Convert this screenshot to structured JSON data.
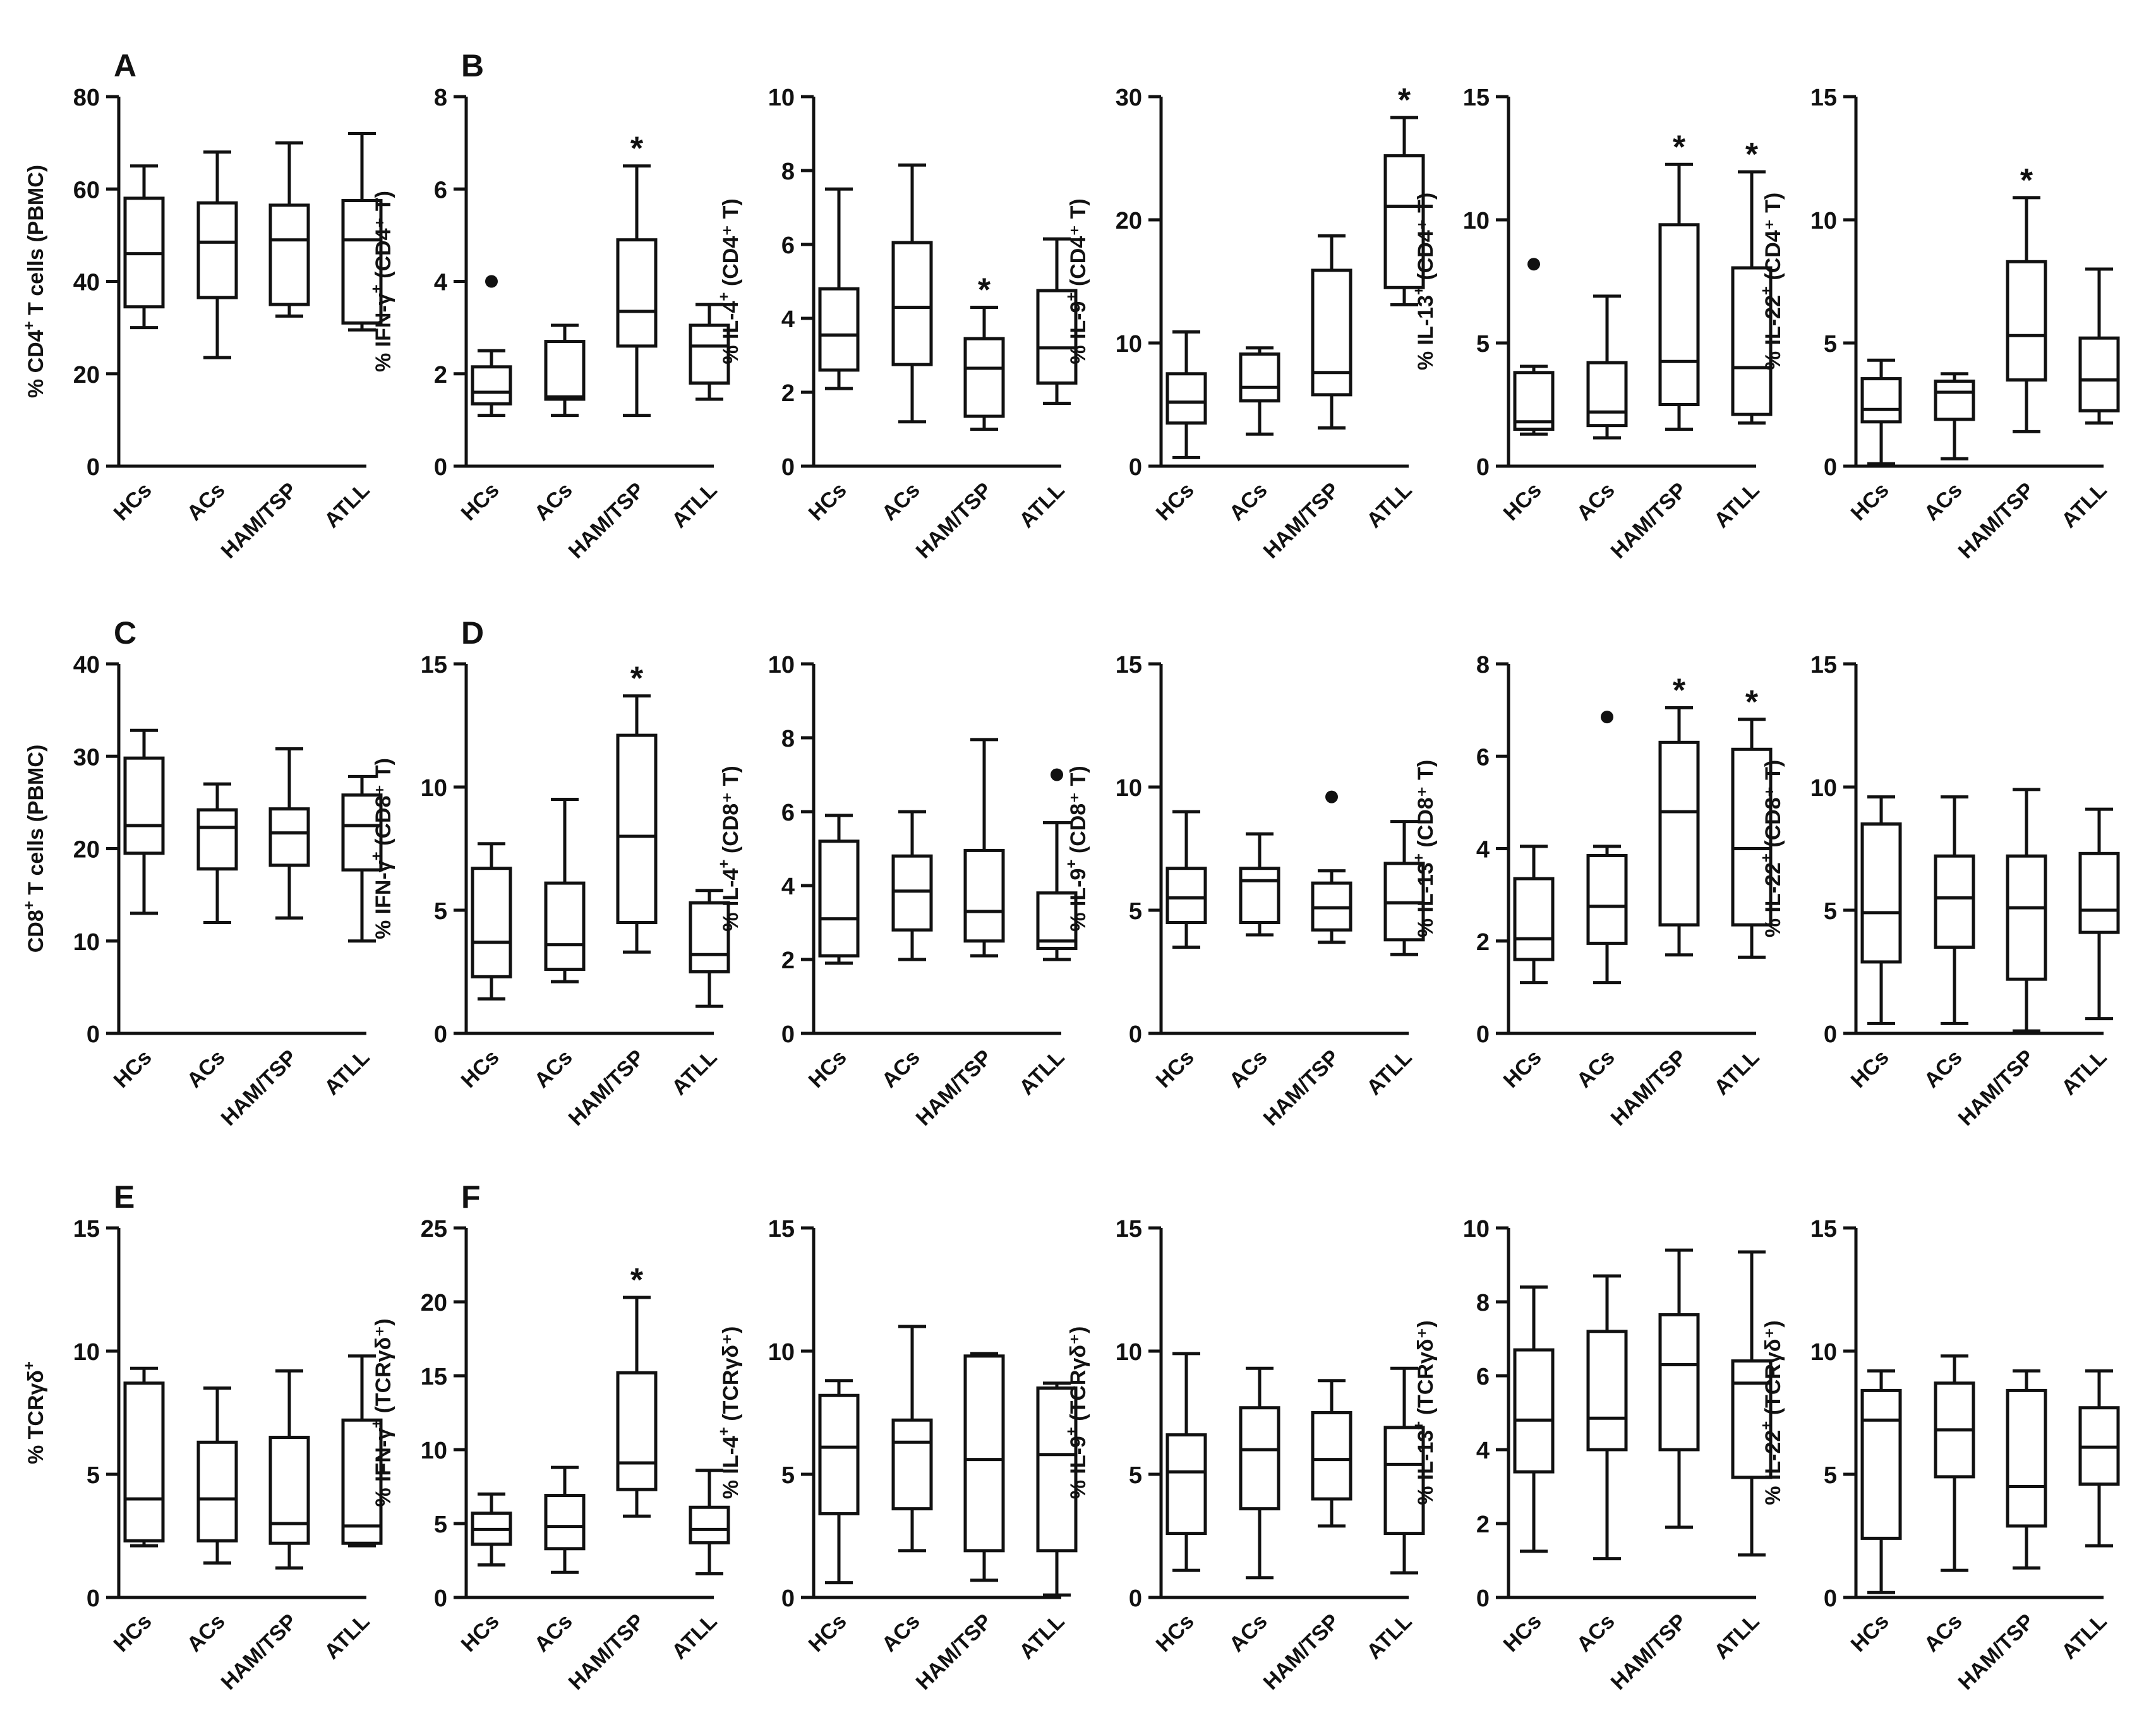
{
  "figure": {
    "categories": [
      "HCs",
      "ACs",
      "HAM/TSP",
      "ATLL"
    ],
    "colors": {
      "stroke": "#111111",
      "background": "#ffffff"
    }
  },
  "chart_data": [
    {
      "panel": "A",
      "type": "box",
      "ylabel": "% CD4",
      "ylabel_sup": "+",
      "ylabel_rest": " T cells (PBMC)",
      "ylim": [
        0,
        80
      ],
      "yticks": [
        0,
        20,
        40,
        60,
        80
      ],
      "categories": [
        "HCs",
        "ACs",
        "HAM/TSP",
        "ATLL"
      ],
      "boxes": [
        [
          30,
          34.5,
          46,
          58,
          65
        ],
        [
          23.5,
          36.5,
          48.5,
          57,
          68
        ],
        [
          32.5,
          35,
          49,
          56.5,
          70
        ],
        [
          29.5,
          31,
          49,
          57.5,
          72
        ]
      ],
      "outliers": [
        [],
        [],
        [],
        []
      ],
      "stars": [
        false,
        false,
        false,
        false
      ]
    },
    {
      "panel": "B",
      "type": "box",
      "ylabel": "% IFN-γ",
      "ylabel_sup": "+",
      "ylabel_rest": " (CD4⁺ T)",
      "ylim": [
        0,
        8
      ],
      "yticks": [
        0,
        2,
        4,
        6,
        8
      ],
      "categories": [
        "HCs",
        "ACs",
        "HAM/TSP",
        "ATLL"
      ],
      "boxes": [
        [
          1.1,
          1.35,
          1.6,
          2.15,
          2.5
        ],
        [
          1.1,
          1.45,
          1.5,
          2.7,
          3.05
        ],
        [
          1.1,
          2.6,
          3.35,
          4.9,
          6.5
        ],
        [
          1.45,
          1.8,
          2.6,
          3.05,
          3.5
        ]
      ],
      "outliers": [
        [
          4.0
        ],
        [],
        [],
        []
      ],
      "stars": [
        false,
        false,
        true,
        false
      ]
    },
    {
      "panel": "",
      "type": "box",
      "ylabel": "% IL-4",
      "ylabel_sup": "+",
      "ylabel_rest": " (CD4⁺ T)",
      "ylim": [
        0,
        10
      ],
      "yticks": [
        0,
        2,
        4,
        6,
        8,
        10
      ],
      "categories": [
        "HCs",
        "ACs",
        "HAM/TSP",
        "ATLL"
      ],
      "boxes": [
        [
          2.1,
          2.6,
          3.55,
          4.8,
          7.5
        ],
        [
          1.2,
          2.75,
          4.3,
          6.05,
          8.15
        ],
        [
          1.0,
          1.35,
          2.65,
          3.45,
          4.3
        ],
        [
          1.7,
          2.25,
          3.2,
          4.75,
          6.15
        ]
      ],
      "outliers": [
        [],
        [],
        [],
        []
      ],
      "stars": [
        false,
        false,
        true,
        false
      ]
    },
    {
      "panel": "",
      "type": "box",
      "ylabel": "% IL-9",
      "ylabel_sup": "+",
      "ylabel_rest": " (CD4⁺ T)",
      "ylim": [
        0,
        30
      ],
      "yticks": [
        0,
        10,
        20,
        30
      ],
      "categories": [
        "HCs",
        "ACs",
        "HAM/TSP",
        "ATLL"
      ],
      "boxes": [
        [
          0.7,
          3.5,
          5.2,
          7.5,
          10.9
        ],
        [
          2.6,
          5.3,
          6.4,
          9.1,
          9.6
        ],
        [
          3.1,
          5.8,
          7.6,
          15.9,
          18.7
        ],
        [
          13.1,
          14.5,
          21.1,
          25.2,
          28.3
        ]
      ],
      "outliers": [
        [],
        [],
        [],
        []
      ],
      "stars": [
        false,
        false,
        false,
        true
      ]
    },
    {
      "panel": "",
      "type": "box",
      "ylabel": "% IL-13",
      "ylabel_sup": "+",
      "ylabel_rest": " (CD4⁺ T)",
      "ylim": [
        0,
        15
      ],
      "yticks": [
        0,
        5,
        10,
        15
      ],
      "categories": [
        "HCs",
        "ACs",
        "HAM/TSP",
        "ATLL"
      ],
      "boxes": [
        [
          1.3,
          1.5,
          1.8,
          3.8,
          4.05
        ],
        [
          1.15,
          1.65,
          2.2,
          4.2,
          6.9
        ],
        [
          1.5,
          2.5,
          4.25,
          9.8,
          12.25
        ],
        [
          1.75,
          2.1,
          4.0,
          8.05,
          11.95
        ]
      ],
      "outliers": [
        [
          8.2
        ],
        [],
        [],
        []
      ],
      "stars": [
        false,
        false,
        true,
        true
      ]
    },
    {
      "panel": "",
      "type": "box",
      "ylabel": "% IL-22",
      "ylabel_sup": "+",
      "ylabel_rest": " (CD4⁺ T)",
      "ylim": [
        0,
        15
      ],
      "yticks": [
        0,
        5,
        10,
        15
      ],
      "categories": [
        "HCs",
        "ACs",
        "HAM/TSP",
        "ATLL"
      ],
      "boxes": [
        [
          0.1,
          1.8,
          2.3,
          3.55,
          4.3
        ],
        [
          0.3,
          1.9,
          3.0,
          3.45,
          3.75
        ],
        [
          1.4,
          3.5,
          5.3,
          8.3,
          10.9
        ],
        [
          1.75,
          2.25,
          3.5,
          5.2,
          8.0
        ]
      ],
      "outliers": [
        [],
        [],
        [],
        []
      ],
      "stars": [
        false,
        false,
        true,
        false
      ]
    },
    {
      "panel": "C",
      "type": "box",
      "ylabel": "CD8",
      "ylabel_sup": "+",
      "ylabel_rest": " T cells (PBMC)",
      "ylim": [
        0,
        40
      ],
      "yticks": [
        0,
        10,
        20,
        30,
        40
      ],
      "categories": [
        "HCs",
        "ACs",
        "HAM/TSP",
        "ATLL"
      ],
      "boxes": [
        [
          13,
          19.5,
          22.5,
          29.8,
          32.8
        ],
        [
          12,
          17.8,
          22.3,
          24.2,
          27
        ],
        [
          12.5,
          18.2,
          21.7,
          24.3,
          30.8
        ],
        [
          10,
          17.7,
          22.5,
          25.8,
          27.8
        ]
      ],
      "outliers": [
        [],
        [],
        [],
        []
      ],
      "stars": [
        false,
        false,
        false,
        false
      ]
    },
    {
      "panel": "D",
      "type": "box",
      "ylabel": "% IFN-γ",
      "ylabel_sup": "+",
      "ylabel_rest": " (CD8⁺ T)",
      "ylim": [
        0,
        15
      ],
      "yticks": [
        0,
        5,
        10,
        15
      ],
      "categories": [
        "HCs",
        "ACs",
        "HAM/TSP",
        "ATLL"
      ],
      "boxes": [
        [
          1.4,
          2.3,
          3.7,
          6.7,
          7.7
        ],
        [
          2.1,
          2.6,
          3.6,
          6.1,
          9.5
        ],
        [
          3.3,
          4.5,
          8.0,
          12.1,
          13.7
        ],
        [
          1.1,
          2.5,
          3.2,
          5.3,
          5.8
        ]
      ],
      "outliers": [
        [],
        [],
        [],
        []
      ],
      "stars": [
        false,
        false,
        true,
        false
      ]
    },
    {
      "panel": "",
      "type": "box",
      "ylabel": "% IL-4",
      "ylabel_sup": "+",
      "ylabel_rest": " (CD8⁺ T)",
      "ylim": [
        0,
        10
      ],
      "yticks": [
        0,
        2,
        4,
        6,
        8,
        10
      ],
      "categories": [
        "HCs",
        "ACs",
        "HAM/TSP",
        "ATLL"
      ],
      "boxes": [
        [
          1.9,
          2.1,
          3.1,
          5.2,
          5.9
        ],
        [
          2.0,
          2.8,
          3.85,
          4.8,
          6.0
        ],
        [
          2.1,
          2.5,
          3.3,
          4.95,
          7.95
        ],
        [
          2.0,
          2.3,
          2.5,
          3.8,
          5.7
        ]
      ],
      "outliers": [
        [],
        [],
        [],
        [
          7.0
        ]
      ],
      "stars": [
        false,
        false,
        false,
        false
      ]
    },
    {
      "panel": "",
      "type": "box",
      "ylabel": "% IL-9",
      "ylabel_sup": "+",
      "ylabel_rest": " (CD8⁺ T)",
      "ylim": [
        0,
        15
      ],
      "yticks": [
        0,
        5,
        10,
        15
      ],
      "categories": [
        "HCs",
        "ACs",
        "HAM/TSP",
        "ATLL"
      ],
      "boxes": [
        [
          3.5,
          4.5,
          5.5,
          6.7,
          9.0
        ],
        [
          4.0,
          4.5,
          6.2,
          6.7,
          8.1
        ],
        [
          3.7,
          4.2,
          5.1,
          6.1,
          6.6
        ],
        [
          3.2,
          3.8,
          5.3,
          6.9,
          8.6
        ]
      ],
      "outliers": [
        [],
        [],
        [
          9.6
        ],
        []
      ],
      "stars": [
        false,
        false,
        false,
        false
      ]
    },
    {
      "panel": "",
      "type": "box",
      "ylabel": "% IL-13",
      "ylabel_sup": "+",
      "ylabel_rest": " (CD8⁺ T)",
      "ylim": [
        0,
        8
      ],
      "yticks": [
        0,
        2,
        4,
        6,
        8
      ],
      "categories": [
        "HCs",
        "ACs",
        "HAM/TSP",
        "ATLL"
      ],
      "boxes": [
        [
          1.1,
          1.6,
          2.05,
          3.35,
          4.05
        ],
        [
          1.1,
          1.95,
          2.75,
          3.85,
          4.05
        ],
        [
          1.7,
          2.35,
          4.8,
          6.3,
          7.05
        ],
        [
          1.65,
          2.35,
          4.0,
          6.15,
          6.8
        ]
      ],
      "outliers": [
        [],
        [
          6.85
        ],
        [],
        []
      ],
      "stars": [
        false,
        false,
        true,
        true
      ]
    },
    {
      "panel": "",
      "type": "box",
      "ylabel": "% IL-22",
      "ylabel_sup": "+",
      "ylabel_rest": " (CD8⁺ T)",
      "ylim": [
        0,
        15
      ],
      "yticks": [
        0,
        5,
        10,
        15
      ],
      "categories": [
        "HCs",
        "ACs",
        "HAM/TSP",
        "ATLL"
      ],
      "boxes": [
        [
          0.4,
          2.9,
          4.9,
          8.5,
          9.6
        ],
        [
          0.4,
          3.5,
          5.5,
          7.2,
          9.6
        ],
        [
          0.1,
          2.2,
          5.1,
          7.2,
          9.9
        ],
        [
          0.6,
          4.1,
          5.0,
          7.3,
          9.1
        ]
      ],
      "outliers": [
        [],
        [],
        [],
        []
      ],
      "stars": [
        false,
        false,
        false,
        false
      ]
    },
    {
      "panel": "E",
      "type": "box",
      "ylabel": "% TCRγδ",
      "ylabel_sup": "+",
      "ylabel_rest": "",
      "ylim": [
        0,
        15
      ],
      "yticks": [
        0,
        5,
        10,
        15
      ],
      "categories": [
        "HCs",
        "ACs",
        "HAM/TSP",
        "ATLL"
      ],
      "boxes": [
        [
          2.1,
          2.3,
          4.0,
          8.7,
          9.3
        ],
        [
          1.4,
          2.3,
          4.0,
          6.3,
          8.5
        ],
        [
          1.2,
          2.2,
          3.0,
          6.5,
          9.2
        ],
        [
          2.1,
          2.2,
          2.9,
          7.2,
          9.8
        ]
      ],
      "outliers": [
        [],
        [],
        [],
        []
      ],
      "stars": [
        false,
        false,
        false,
        false
      ]
    },
    {
      "panel": "F",
      "type": "box",
      "ylabel": "% IFN-γ",
      "ylabel_sup": "+",
      "ylabel_rest": " (TCRγδ⁺)",
      "ylim": [
        0,
        25
      ],
      "yticks": [
        0,
        5,
        10,
        15,
        20,
        25
      ],
      "categories": [
        "HCs",
        "ACs",
        "HAM/TSP",
        "ATLL"
      ],
      "boxes": [
        [
          2.2,
          3.6,
          4.6,
          5.7,
          7.0
        ],
        [
          1.7,
          3.3,
          4.8,
          6.9,
          8.8
        ],
        [
          5.5,
          7.3,
          9.1,
          15.2,
          20.3
        ],
        [
          1.6,
          3.7,
          4.6,
          6.1,
          8.6
        ]
      ],
      "outliers": [
        [],
        [],
        [],
        []
      ],
      "stars": [
        false,
        false,
        true,
        false
      ]
    },
    {
      "panel": "",
      "type": "box",
      "ylabel": "% IL-4",
      "ylabel_sup": "+",
      "ylabel_rest": " (TCRγδ⁺)",
      "ylim": [
        0,
        15
      ],
      "yticks": [
        0,
        5,
        10,
        15
      ],
      "categories": [
        "HCs",
        "ACs",
        "HAM/TSP",
        "ATLL"
      ],
      "boxes": [
        [
          0.6,
          3.4,
          6.1,
          8.2,
          8.8
        ],
        [
          1.9,
          3.6,
          6.3,
          7.2,
          11.0
        ],
        [
          0.7,
          1.9,
          5.6,
          9.8,
          9.9
        ],
        [
          0.1,
          1.9,
          5.8,
          8.5,
          8.7
        ]
      ],
      "outliers": [
        [],
        [],
        [],
        []
      ],
      "stars": [
        false,
        false,
        false,
        false
      ]
    },
    {
      "panel": "",
      "type": "box",
      "ylabel": "% IL-9",
      "ylabel_sup": "+",
      "ylabel_rest": " (TCRγδ⁺)",
      "ylim": [
        0,
        15
      ],
      "yticks": [
        0,
        5,
        10,
        15
      ],
      "categories": [
        "HCs",
        "ACs",
        "HAM/TSP",
        "ATLL"
      ],
      "boxes": [
        [
          1.1,
          2.6,
          5.1,
          6.6,
          9.9
        ],
        [
          0.8,
          3.6,
          6.0,
          7.7,
          9.3
        ],
        [
          2.9,
          4.0,
          5.6,
          7.5,
          8.8
        ],
        [
          1.0,
          2.6,
          5.4,
          6.9,
          9.3
        ]
      ],
      "outliers": [
        [],
        [],
        [],
        []
      ],
      "stars": [
        false,
        false,
        false,
        false
      ]
    },
    {
      "panel": "",
      "type": "box",
      "ylabel": "% IL-13",
      "ylabel_sup": "+",
      "ylabel_rest": " (TCRγδ⁺)",
      "ylim": [
        0,
        10
      ],
      "yticks": [
        0,
        2,
        4,
        6,
        8,
        10
      ],
      "categories": [
        "HCs",
        "ACs",
        "HAM/TSP",
        "ATLL"
      ],
      "boxes": [
        [
          1.25,
          3.4,
          4.8,
          6.7,
          8.4
        ],
        [
          1.05,
          4.0,
          4.85,
          7.2,
          8.7
        ],
        [
          1.9,
          4.0,
          6.3,
          7.65,
          9.4
        ],
        [
          1.15,
          3.25,
          5.8,
          6.4,
          9.35
        ]
      ],
      "outliers": [
        [],
        [],
        [],
        []
      ],
      "stars": [
        false,
        false,
        false,
        false
      ]
    },
    {
      "panel": "",
      "type": "box",
      "ylabel": "% IL-22",
      "ylabel_sup": "+",
      "ylabel_rest": " (TCRγδ⁺)",
      "ylim": [
        0,
        15
      ],
      "yticks": [
        0,
        5,
        10,
        15
      ],
      "categories": [
        "HCs",
        "ACs",
        "HAM/TSP",
        "ATLL"
      ],
      "boxes": [
        [
          0.2,
          2.4,
          7.2,
          8.4,
          9.2
        ],
        [
          1.1,
          4.9,
          6.8,
          8.7,
          9.8
        ],
        [
          1.2,
          2.9,
          4.5,
          8.4,
          9.2
        ],
        [
          2.1,
          4.6,
          6.1,
          7.7,
          9.2
        ]
      ],
      "outliers": [
        [],
        [],
        [],
        []
      ],
      "stars": [
        false,
        false,
        false,
        false
      ]
    }
  ]
}
